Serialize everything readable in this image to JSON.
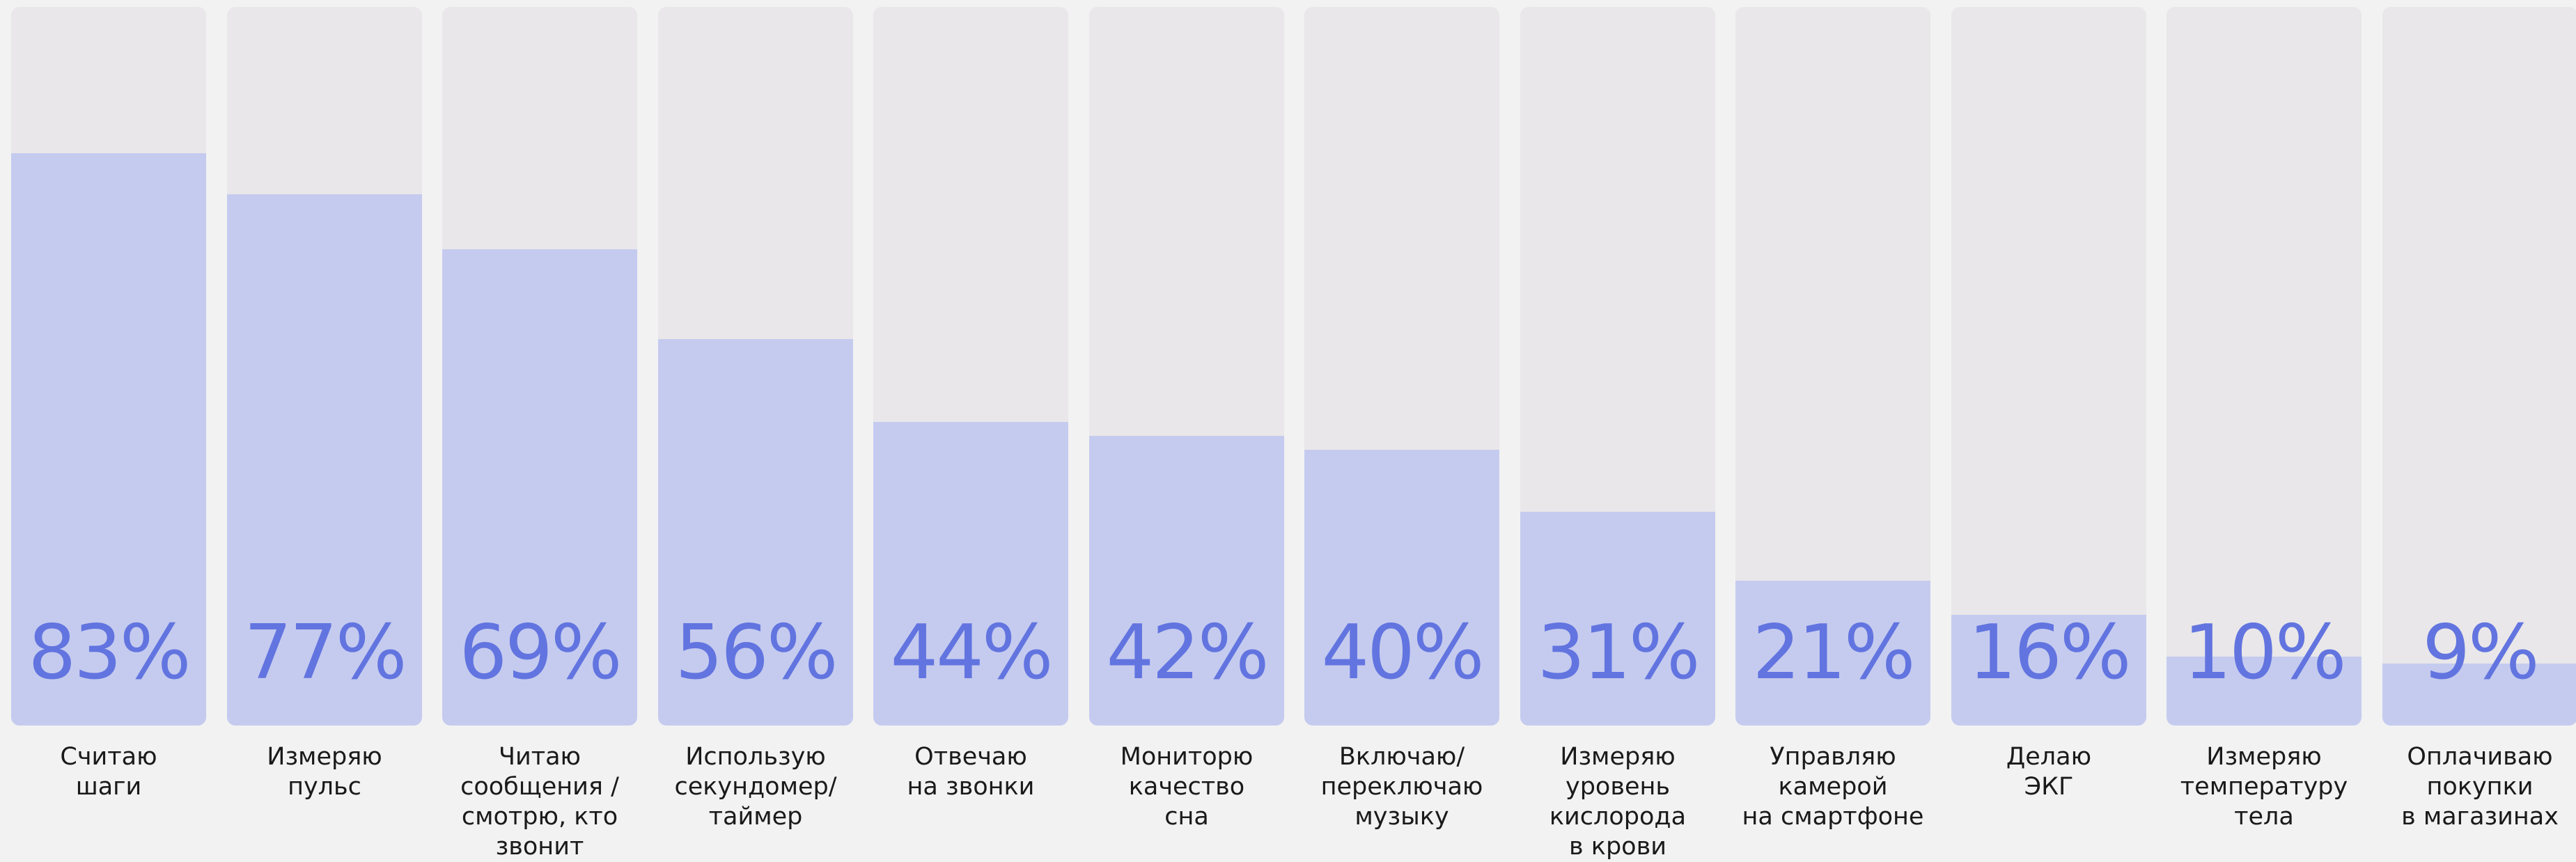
{
  "chart_data": {
    "type": "bar",
    "value_suffix": "%",
    "ylim": [
      0,
      100
    ],
    "grid": false,
    "colors": {
      "background": "#f2f2f2",
      "track": "#e9e7e9",
      "fill": "#c5cbef",
      "value_text": "#6274df",
      "label_text": "#1a1a1a"
    },
    "categories": [
      "Считаю\nшаги",
      "Измеряю\nпульс",
      "Читаю\nсообщения /\nсмотрю, кто\nзвонит",
      "Использую\nсекундомер/\nтаймер",
      "Отвечаю\nна звонки",
      "Мониторю\nкачество\nсна",
      "Включаю/\nпереключаю\nмузыку",
      "Измеряю\nуровень\nкислорода\nв крови",
      "Управляю\nкамерой\nна смартфоне",
      "Делаю\nЭКГ",
      "Измеряю\nтемпературу\nтела",
      "Оплачиваю\nпокупки\nв магазинах"
    ],
    "values": [
      83,
      77,
      69,
      56,
      44,
      42,
      40,
      31,
      21,
      16,
      10,
      9
    ]
  }
}
